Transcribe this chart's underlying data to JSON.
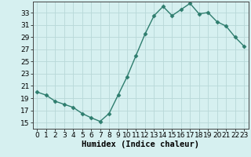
{
  "x": [
    0,
    1,
    2,
    3,
    4,
    5,
    6,
    7,
    8,
    9,
    10,
    11,
    12,
    13,
    14,
    15,
    16,
    17,
    18,
    19,
    20,
    21,
    22,
    23
  ],
  "y": [
    20.0,
    19.5,
    18.5,
    18.0,
    17.5,
    16.5,
    15.8,
    15.2,
    16.5,
    19.5,
    22.5,
    26.0,
    29.5,
    32.5,
    34.0,
    32.5,
    33.5,
    34.5,
    32.8,
    33.0,
    31.5,
    30.8,
    29.0,
    27.5
  ],
  "xlabel": "Humidex (Indice chaleur)",
  "xlim": [
    -0.5,
    23.5
  ],
  "ylim": [
    14.0,
    34.8
  ],
  "yticks": [
    15,
    17,
    19,
    21,
    23,
    25,
    27,
    29,
    31,
    33
  ],
  "xticks": [
    0,
    1,
    2,
    3,
    4,
    5,
    6,
    7,
    8,
    9,
    10,
    11,
    12,
    13,
    14,
    15,
    16,
    17,
    18,
    19,
    20,
    21,
    22,
    23
  ],
  "line_color": "#2e7d6e",
  "marker": "D",
  "marker_size": 2.5,
  "bg_color": "#d6f0f0",
  "grid_color": "#b8d8d8",
  "line_width": 1.0,
  "xlabel_fontsize": 7.5,
  "tick_fontsize": 6.5
}
